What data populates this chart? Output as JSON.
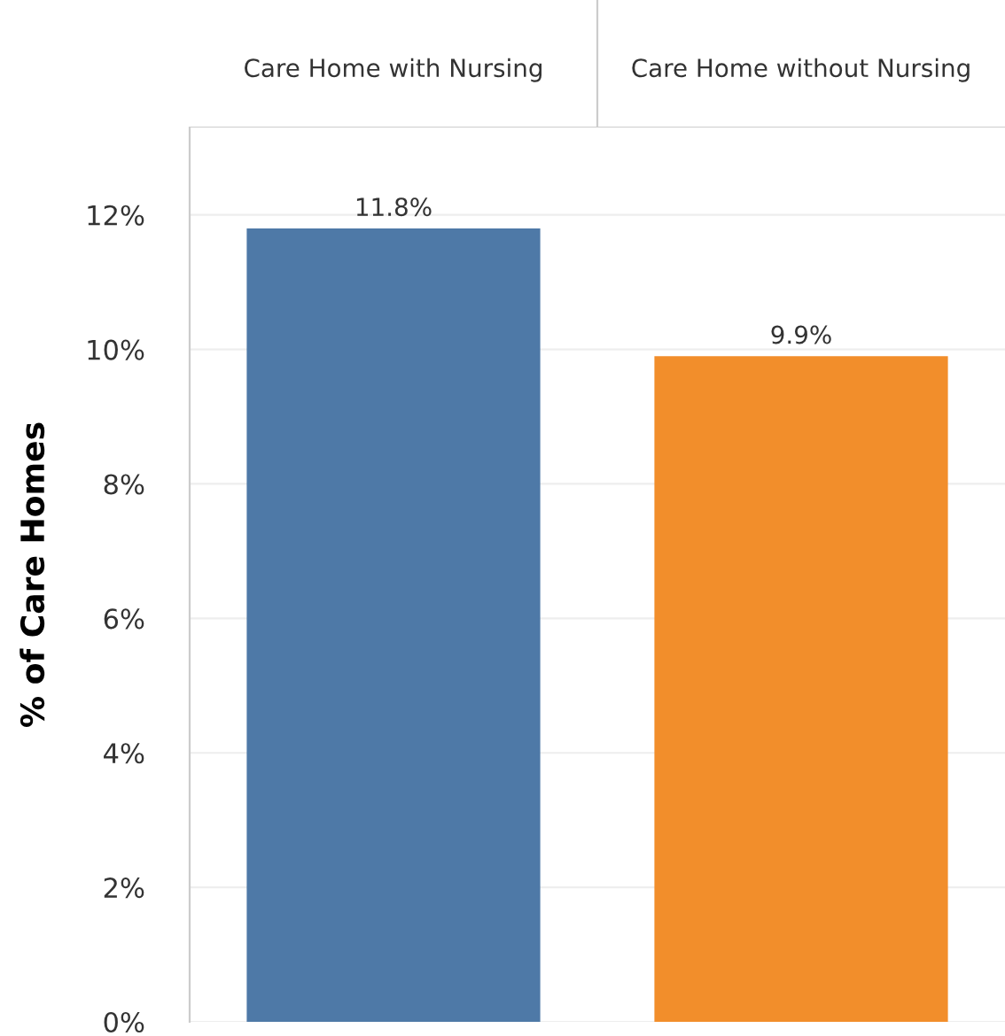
{
  "chart_data": {
    "type": "bar",
    "ylabel": "% of Care Homes",
    "categories": [
      "Care Home with Nursing",
      "Care Home without Nursing"
    ],
    "values": [
      11.8,
      9.9
    ],
    "colors": [
      "#4e79a7",
      "#f28e2b"
    ],
    "value_labels": [
      "11.8%",
      "9.9%"
    ],
    "ylim": [
      0,
      13.3
    ],
    "yticks": [
      {
        "value": 0,
        "label": "0%"
      },
      {
        "value": 2,
        "label": "2%"
      },
      {
        "value": 4,
        "label": "4%"
      },
      {
        "value": 6,
        "label": "6%"
      },
      {
        "value": 8,
        "label": "8%"
      },
      {
        "value": 10,
        "label": "10%"
      },
      {
        "value": 12,
        "label": "12%"
      }
    ],
    "grid": "y"
  }
}
